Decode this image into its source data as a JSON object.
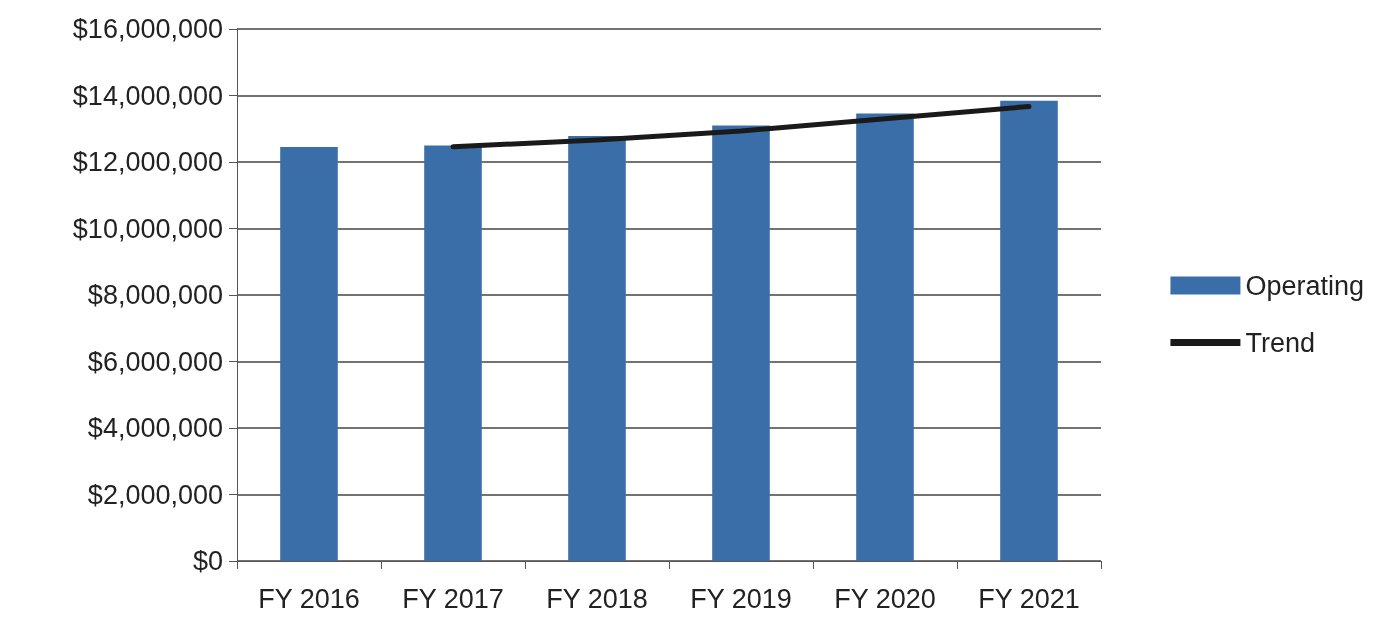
{
  "chart_data": {
    "type": "bar",
    "categories": [
      "FY 2016",
      "FY 2017",
      "FY 2018",
      "FY 2019",
      "FY 2020",
      "FY 2021"
    ],
    "series": [
      {
        "name": "Operating",
        "color": "#3a6ea8",
        "values": [
          12450000,
          12500000,
          12780000,
          13100000,
          13460000,
          13840000
        ]
      },
      {
        "name": "Trend",
        "type": "line",
        "color": "#1a1a1a",
        "x": [
          "FY 2017",
          "FY 2018",
          "FY 2019",
          "FY 2020",
          "FY 2021"
        ],
        "values": [
          12460000,
          12660000,
          12930000,
          13300000,
          13670000
        ]
      }
    ],
    "ylim": [
      0,
      16000000
    ],
    "yticks": [
      {
        "value": 0,
        "label": "$0"
      },
      {
        "value": 2000000,
        "label": "$2,000,000"
      },
      {
        "value": 4000000,
        "label": "$4,000,000"
      },
      {
        "value": 6000000,
        "label": "$6,000,000"
      },
      {
        "value": 8000000,
        "label": "$8,000,000"
      },
      {
        "value": 10000000,
        "label": "$10,000,000"
      },
      {
        "value": 12000000,
        "label": "$12,000,000"
      },
      {
        "value": 14000000,
        "label": "$14,000,000"
      },
      {
        "value": 16000000,
        "label": "$16,000,000"
      }
    ],
    "grid": "y",
    "legend": "right",
    "marker": "none",
    "line_style": "solid"
  }
}
